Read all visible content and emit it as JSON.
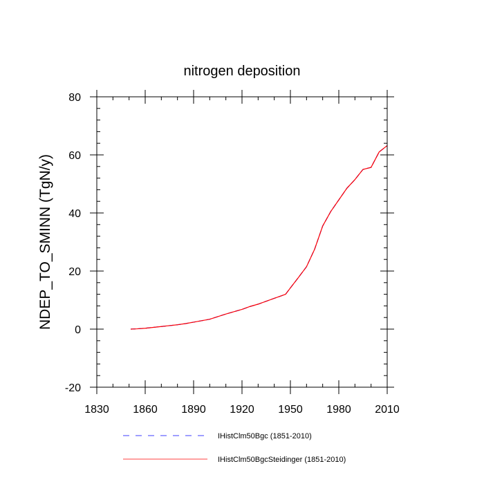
{
  "chart_data": {
    "type": "line",
    "title": "nitrogen deposition",
    "xlabel": "",
    "ylabel": "NDEP_TO_SMINN  (TgN/y)",
    "xlim": [
      1830,
      2010
    ],
    "ylim": [
      -20,
      80
    ],
    "xticks": [
      1830,
      1860,
      1890,
      1920,
      1950,
      1980,
      2010
    ],
    "yticks": [
      -20,
      0,
      20,
      40,
      60,
      80
    ],
    "grid": false,
    "legend_position": "bottom",
    "series": [
      {
        "name": "IHistClm50Bgc (1851-2010)",
        "color": "#0000ff",
        "style": "dashed",
        "x": [
          1851,
          1855,
          1860,
          1865,
          1870,
          1875,
          1880,
          1885,
          1890,
          1895,
          1900,
          1905,
          1910,
          1915,
          1920,
          1925,
          1930,
          1935,
          1940,
          1945,
          1947,
          1950,
          1955,
          1960,
          1965,
          1970,
          1975,
          1980,
          1985,
          1990,
          1995,
          2000,
          2005,
          2010
        ],
        "y": [
          0.0,
          0.1,
          0.3,
          0.6,
          0.9,
          1.2,
          1.5,
          1.9,
          2.4,
          2.9,
          3.4,
          4.3,
          5.2,
          6.0,
          6.8,
          7.8,
          8.6,
          9.6,
          10.6,
          11.6,
          12.0,
          14.2,
          17.8,
          21.5,
          27.5,
          35.5,
          40.5,
          44.5,
          48.5,
          51.5,
          55.0,
          55.7,
          61.0,
          63.2
        ]
      },
      {
        "name": "IHistClm50BgcSteidinger (1851-2010)",
        "color": "#ff0000",
        "style": "solid",
        "x": [
          1851,
          1855,
          1860,
          1865,
          1870,
          1875,
          1880,
          1885,
          1890,
          1895,
          1900,
          1905,
          1910,
          1915,
          1920,
          1925,
          1930,
          1935,
          1940,
          1945,
          1947,
          1950,
          1955,
          1960,
          1965,
          1970,
          1975,
          1980,
          1985,
          1990,
          1995,
          2000,
          2005,
          2010
        ],
        "y": [
          0.0,
          0.1,
          0.3,
          0.6,
          0.9,
          1.2,
          1.5,
          1.9,
          2.4,
          2.9,
          3.4,
          4.3,
          5.2,
          6.0,
          6.8,
          7.8,
          8.6,
          9.6,
          10.6,
          11.6,
          12.0,
          14.2,
          17.8,
          21.5,
          27.5,
          35.5,
          40.5,
          44.5,
          48.5,
          51.5,
          55.0,
          55.7,
          61.0,
          63.2
        ]
      }
    ]
  }
}
